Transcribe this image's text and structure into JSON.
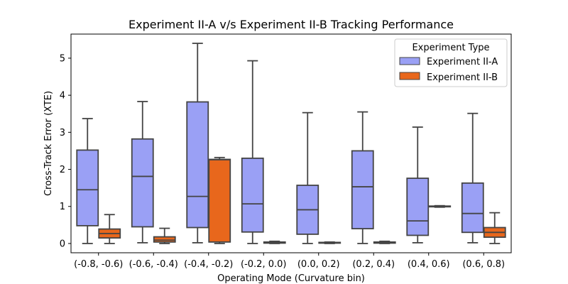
{
  "chart_data": {
    "type": "box",
    "title": "Experiment II-A v/s Experiment II-B Tracking Performance",
    "xlabel": "Operating Mode (Curvature bin)",
    "ylabel": "Cross-Track Error (XTE)",
    "ylim": [
      -0.25,
      5.65
    ],
    "yticks": [
      0,
      1,
      2,
      3,
      4,
      5
    ],
    "categories": [
      "(-0.8, -0.6)",
      "(-0.6, -0.4)",
      "(-0.4, -0.2)",
      "(-0.2, 0.0)",
      "(0.0, 0.2)",
      "(0.2, 0.4)",
      "(0.4, 0.6)",
      "(0.6, 0.8)"
    ],
    "legend": {
      "title": "Experiment Type",
      "position": "top-right"
    },
    "grid": false,
    "series": [
      {
        "name": "Experiment II-A",
        "color": "#9aa0f5",
        "boxes": [
          {
            "whislo": 0.0,
            "q1": 0.48,
            "med": 1.45,
            "q3": 2.52,
            "whishi": 3.37
          },
          {
            "whislo": 0.02,
            "q1": 0.45,
            "med": 1.81,
            "q3": 2.82,
            "whishi": 3.83
          },
          {
            "whislo": 0.02,
            "q1": 0.43,
            "med": 1.27,
            "q3": 3.82,
            "whishi": 5.4
          },
          {
            "whislo": 0.0,
            "q1": 0.31,
            "med": 1.07,
            "q3": 2.3,
            "whishi": 4.93
          },
          {
            "whislo": 0.0,
            "q1": 0.25,
            "med": 0.91,
            "q3": 1.57,
            "whishi": 3.53
          },
          {
            "whislo": 0.0,
            "q1": 0.4,
            "med": 1.53,
            "q3": 2.5,
            "whishi": 3.55
          },
          {
            "whislo": 0.02,
            "q1": 0.22,
            "med": 0.61,
            "q3": 1.76,
            "whishi": 3.14
          },
          {
            "whislo": 0.02,
            "q1": 0.3,
            "med": 0.81,
            "q3": 1.63,
            "whishi": 3.51
          }
        ]
      },
      {
        "name": "Experiment II-B",
        "color": "#e8671c",
        "boxes": [
          {
            "whislo": 0.0,
            "q1": 0.15,
            "med": 0.27,
            "q3": 0.39,
            "whishi": 0.78
          },
          {
            "whislo": 0.0,
            "q1": 0.04,
            "med": 0.09,
            "q3": 0.18,
            "whishi": 0.41
          },
          {
            "whislo": 0.0,
            "q1": 0.04,
            "med": 2.26,
            "q3": 2.27,
            "whishi": 2.32
          },
          {
            "whislo": 0.0,
            "q1": 0.01,
            "med": 0.02,
            "q3": 0.04,
            "whishi": 0.06
          },
          {
            "whislo": 0.0,
            "q1": 0.01,
            "med": 0.02,
            "q3": 0.03,
            "whishi": 0.04
          },
          {
            "whislo": 0.0,
            "q1": 0.01,
            "med": 0.02,
            "q3": 0.04,
            "whishi": 0.06
          },
          {
            "whislo": 0.98,
            "q1": 0.99,
            "med": 1.0,
            "q3": 1.01,
            "whishi": 1.02
          },
          {
            "whislo": 0.0,
            "q1": 0.17,
            "med": 0.3,
            "q3": 0.43,
            "whishi": 0.83
          }
        ]
      }
    ]
  }
}
